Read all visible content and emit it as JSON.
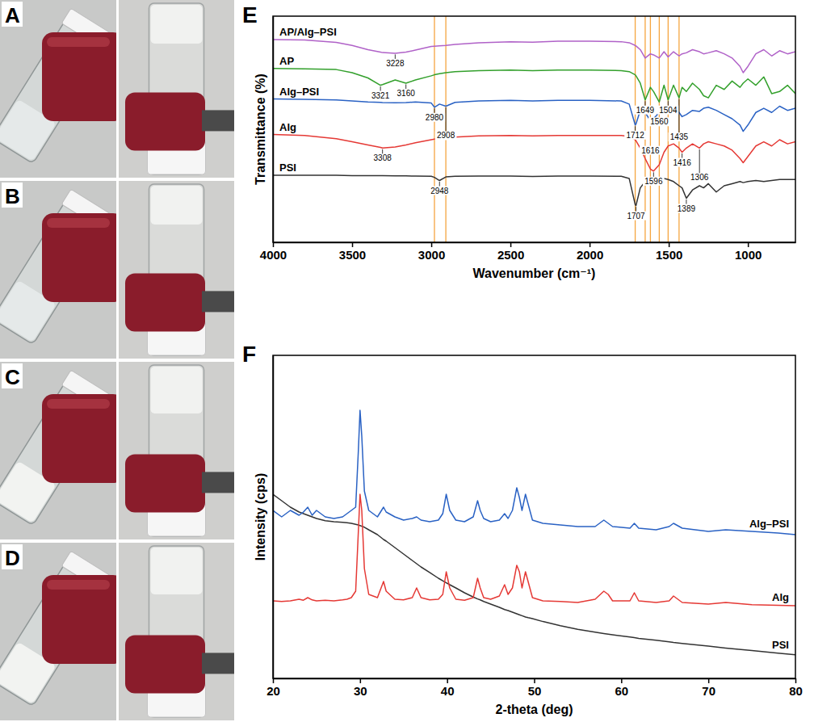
{
  "figure": {
    "panel_labels": [
      "A",
      "B",
      "C",
      "D",
      "E",
      "F"
    ]
  },
  "chart_data": [
    {
      "type": "line",
      "x_label": "Wavenumber (cm⁻¹)",
      "y_label": "Transmittance (%)",
      "x": [
        4000,
        3800,
        3600,
        3500,
        3400,
        3321,
        3308,
        3228,
        3160,
        3100,
        3000,
        2980,
        2948,
        2908,
        2850,
        2700,
        2500,
        2360,
        2200,
        2000,
        1800,
        1750,
        1712,
        1707,
        1680,
        1649,
        1616,
        1596,
        1560,
        1530,
        1504,
        1470,
        1435,
        1416,
        1389,
        1350,
        1306,
        1280,
        1250,
        1200,
        1150,
        1100,
        1050,
        1030,
        1000,
        950,
        900,
        850,
        800,
        750,
        700
      ],
      "xlim": [
        4000,
        700
      ],
      "xticks": [
        4000,
        3500,
        3000,
        2500,
        2000,
        1500,
        1000
      ],
      "ylim": [
        0,
        108
      ],
      "yticks": [],
      "tick_labels": "x",
      "reference_lines": {
        "values": [
          2980,
          2908,
          1712,
          1649,
          1616,
          1560,
          1504,
          1435
        ],
        "color": "#f5a540"
      },
      "series": [
        {
          "name": "PSI",
          "color": "#333333",
          "values": [
            32,
            32,
            32,
            31.8,
            31.8,
            31.8,
            31.8,
            31.7,
            31.7,
            31.6,
            31.5,
            31,
            29.5,
            31.2,
            31.5,
            31.6,
            31.6,
            31.4,
            31.6,
            31.6,
            31.5,
            30.5,
            18,
            17.5,
            26,
            29,
            30,
            30,
            30.5,
            30.5,
            30,
            29,
            27,
            26,
            21,
            25,
            27,
            26,
            28,
            24,
            27,
            28,
            29,
            28.5,
            29,
            29.5,
            29,
            29.5,
            30,
            30,
            30
          ],
          "annotations": [
            {
              "text": "2948",
              "x": 2948
            },
            {
              "text": "1707",
              "x": 1707
            },
            {
              "text": "1389",
              "x": 1389
            }
          ]
        },
        {
          "name": "Alg",
          "color": "#e53935",
          "values": [
            51.5,
            51,
            49.5,
            48,
            46.5,
            45.3,
            45,
            45.5,
            46.5,
            47.5,
            49,
            49.3,
            49.6,
            49.8,
            50.2,
            50.8,
            51,
            50.8,
            51,
            51,
            51,
            50.5,
            49,
            48.5,
            45,
            40,
            35,
            34,
            37,
            43,
            46,
            47,
            45,
            43,
            45,
            47,
            45,
            47,
            48,
            47,
            46,
            44,
            40,
            38,
            41,
            46,
            48,
            46,
            49,
            47,
            48
          ],
          "annotations": [
            {
              "text": "3308",
              "x": 3308
            },
            {
              "text": "1596",
              "x": 1596
            },
            {
              "text": "1416",
              "x": 1416
            },
            {
              "text": "1306",
              "x": 1306
            }
          ]
        },
        {
          "name": "Alg–PSI",
          "color": "#2a62c4",
          "values": [
            68.5,
            68.3,
            68,
            67.5,
            67,
            66.8,
            66.7,
            66.6,
            66.7,
            67,
            66.5,
            64.5,
            66,
            65,
            66.8,
            67.5,
            67.8,
            67.5,
            67.8,
            67.8,
            67.5,
            66,
            56,
            56.5,
            63,
            62,
            58,
            59,
            62,
            64,
            64.5,
            63.5,
            62,
            60,
            61,
            63,
            62.5,
            64,
            64.5,
            63,
            61,
            59,
            56,
            53,
            56,
            62,
            64,
            62,
            65,
            63,
            64
          ],
          "annotations": [
            {
              "text": "2980",
              "x": 2980
            },
            {
              "text": "2908",
              "x": 2908
            },
            {
              "text": "1712",
              "x": 1712
            },
            {
              "text": "1616",
              "x": 1616
            }
          ]
        },
        {
          "name": "AP",
          "color": "#33a02c",
          "values": [
            83,
            82.8,
            82.5,
            81,
            78.5,
            75,
            75.3,
            77.5,
            76,
            77.5,
            79.5,
            80,
            80.5,
            81,
            81.5,
            82,
            82.3,
            82,
            82.3,
            82.3,
            82,
            81.5,
            80,
            79.5,
            76,
            68,
            74,
            72,
            67,
            75,
            68,
            75,
            69,
            74,
            72,
            76,
            73,
            70,
            69,
            75,
            73,
            77,
            74,
            76,
            78,
            75,
            79,
            71,
            72,
            75,
            71
          ],
          "annotations": [
            {
              "text": "3321",
              "x": 3321
            },
            {
              "text": "3160",
              "x": 3160
            },
            {
              "text": "1649",
              "x": 1649
            },
            {
              "text": "1560",
              "x": 1560
            },
            {
              "text": "1504",
              "x": 1504
            },
            {
              "text": "1435",
              "x": 1435
            }
          ]
        },
        {
          "name": "AP/Alg–PSI",
          "color": "#b062c8",
          "values": [
            96.8,
            96.6,
            95.5,
            94,
            92,
            90.8,
            90.6,
            90.3,
            90.8,
            91.8,
            93.5,
            93.6,
            93.8,
            94,
            94.5,
            95.3,
            95.8,
            95.6,
            96,
            96,
            95.8,
            95.3,
            94,
            93.8,
            92,
            88,
            90,
            89.5,
            88,
            91,
            88.5,
            91,
            89,
            90,
            90.5,
            92,
            91,
            90,
            90.5,
            91.5,
            90,
            88,
            84,
            81,
            84,
            90,
            92,
            89,
            91.5,
            90,
            91
          ],
          "annotations": [
            {
              "text": "3228",
              "x": 3228
            }
          ]
        }
      ]
    },
    {
      "type": "line",
      "x_label": "2-theta (deg)",
      "y_label": "Intensity (cps)",
      "x": [
        20,
        21,
        22,
        23,
        23.5,
        24,
        24.5,
        25,
        26,
        27,
        28,
        28.5,
        29,
        29.5,
        29.8,
        30,
        30.2,
        30.5,
        31,
        32,
        32.7,
        33,
        34,
        35,
        36,
        36.5,
        37,
        38,
        39,
        39.5,
        39.9,
        40.3,
        41,
        42,
        43,
        43.5,
        43.8,
        44.2,
        45,
        46,
        46.6,
        47,
        47.5,
        48,
        48.3,
        48.6,
        49,
        49.3,
        49.8,
        51,
        53,
        55,
        57,
        58,
        58.5,
        59,
        61,
        61.5,
        62,
        64,
        65.5,
        66,
        67,
        70,
        72,
        75,
        78,
        80
      ],
      "xlim": [
        20,
        80
      ],
      "xticks": [
        20,
        30,
        40,
        50,
        60,
        70,
        80
      ],
      "ylim": [
        0,
        100
      ],
      "yticks": [],
      "tick_labels": "x",
      "series": [
        {
          "name": "PSI",
          "color": "#333333",
          "values": [
            57,
            55,
            53,
            51.5,
            51,
            50.5,
            50,
            49.5,
            48.8,
            48.5,
            48.3,
            48.2,
            48,
            47.7,
            47.5,
            47.3,
            47.1,
            46.8,
            46,
            44.5,
            43,
            42.5,
            40.5,
            38.5,
            36.5,
            35.5,
            34.5,
            32.8,
            31,
            30.2,
            29.6,
            29,
            28,
            26.5,
            25.2,
            24.6,
            24.3,
            23.8,
            23,
            22,
            21.3,
            21,
            20.5,
            20,
            19.7,
            19.4,
            19,
            18.8,
            18.5,
            17.6,
            16.3,
            15.2,
            14.3,
            13.9,
            13.7,
            13.5,
            12.8,
            12.6,
            12.4,
            11.8,
            11.3,
            11.1,
            10.8,
            10,
            9.4,
            8.6,
            7.8,
            7.3
          ]
        },
        {
          "name": "Alg",
          "color": "#e53935",
          "values": [
            24,
            23.8,
            24,
            24.5,
            24.2,
            25,
            24.3,
            24,
            24.2,
            24,
            24.3,
            24.5,
            25,
            27,
            45,
            57,
            52,
            34,
            26,
            25,
            30,
            27,
            24.5,
            24.3,
            25,
            28,
            25,
            24.3,
            24.5,
            26,
            33,
            28,
            24.5,
            24.2,
            25,
            31,
            28,
            25,
            24.5,
            25.5,
            29,
            26,
            28,
            35,
            33,
            28,
            33,
            30,
            25,
            24,
            23.8,
            23.5,
            24.5,
            27,
            26,
            24,
            24,
            26.5,
            24,
            23.5,
            24,
            25.5,
            23.5,
            23,
            23.5,
            22.8,
            22.6,
            22.5
          ]
        },
        {
          "name": "Alg–PSI",
          "color": "#2a62c4",
          "values": [
            52,
            50,
            52,
            50.5,
            51.5,
            53,
            50.5,
            52,
            50,
            49.5,
            50,
            51,
            52,
            53,
            70,
            83,
            75,
            58,
            52,
            50,
            53,
            51.5,
            50,
            49,
            49.5,
            50,
            49,
            48.5,
            49,
            51,
            57,
            52,
            49,
            48.5,
            50,
            55,
            52,
            49.5,
            48.5,
            49,
            51,
            49.5,
            52,
            59,
            56,
            52,
            57,
            54,
            49,
            48,
            47.5,
            47,
            47,
            49,
            48,
            47,
            46.5,
            48,
            46.5,
            46,
            47,
            48,
            46.5,
            45.5,
            46,
            45.5,
            45,
            44.5
          ]
        }
      ]
    }
  ]
}
